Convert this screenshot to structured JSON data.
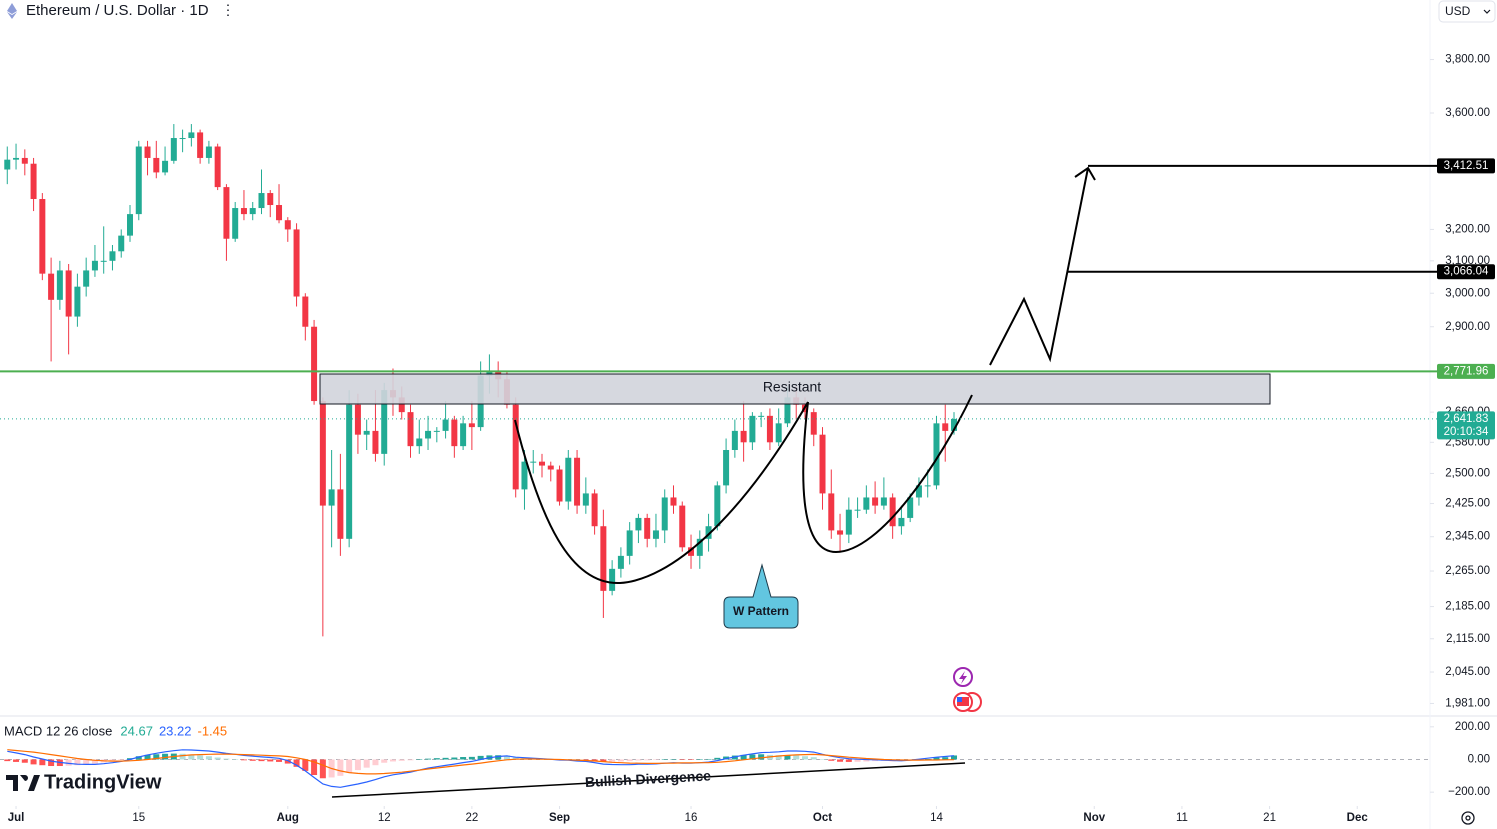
{
  "header": {
    "title": "Ethereum / U.S. Dollar · 1D",
    "currency": "USD"
  },
  "logo": "TradingView",
  "chart_data": [
    {
      "type": "candlestick",
      "log": true,
      "up_color": "#22ab94",
      "down_color": "#f23645",
      "x": [
        -1,
        0,
        1,
        2,
        3,
        4,
        5,
        6,
        7,
        8,
        9,
        10,
        11,
        12,
        13,
        14,
        15,
        16,
        17,
        18,
        19,
        20,
        21,
        22,
        23,
        24,
        25,
        26,
        27,
        28,
        29,
        30,
        31,
        32,
        33,
        34,
        35,
        36,
        37,
        38,
        39,
        40,
        41,
        42,
        43,
        44,
        45,
        46,
        47,
        48,
        49,
        50,
        51,
        52,
        53,
        54,
        55,
        56,
        57,
        58,
        59,
        60,
        61,
        62,
        63,
        64,
        65,
        66,
        67,
        68,
        69,
        70,
        71,
        72,
        73,
        74,
        75,
        76,
        77,
        78,
        79,
        80,
        81,
        82,
        83,
        84,
        85,
        86,
        87,
        88,
        89,
        90,
        91,
        92,
        93,
        94,
        95,
        96,
        97,
        98,
        99,
        100,
        101,
        102,
        103,
        104,
        105,
        106,
        107
      ],
      "opens": [
        3400,
        3434,
        3440,
        3420,
        3300,
        3060,
        2980,
        3070,
        2930,
        3020,
        3070,
        3100,
        3100,
        3130,
        3180,
        3250,
        3480,
        3440,
        3390,
        3430,
        3510,
        3510,
        3530,
        3440,
        3480,
        3340,
        3170,
        3270,
        3250,
        3270,
        3320,
        3280,
        3230,
        3200,
        2990,
        2900,
        2690,
        2420,
        2460,
        2340,
        2680,
        2600,
        2610,
        2550,
        2720,
        2700,
        2660,
        2570,
        2590,
        2610,
        2610,
        2640,
        2570,
        2630,
        2620,
        2760,
        2770,
        2750,
        2680,
        2460,
        2530,
        2530,
        2520,
        2510,
        2430,
        2540,
        2420,
        2450,
        2370,
        2220,
        2270,
        2300,
        2360,
        2390,
        2340,
        2360,
        2440,
        2420,
        2320,
        2300,
        2340,
        2370,
        2470,
        2560,
        2610,
        2580,
        2650,
        2650,
        2580,
        2630,
        2700,
        2680,
        2660,
        2600,
        2450,
        2360,
        2350,
        2410,
        2410,
        2440,
        2420,
        2440,
        2370,
        2390,
        2440,
        2470,
        2470,
        2630,
        2610
      ],
      "highs": [
        3480,
        3490,
        3470,
        3440,
        3320,
        3110,
        3100,
        3090,
        3060,
        3110,
        3150,
        3210,
        3150,
        3200,
        3280,
        3500,
        3500,
        3500,
        3480,
        3560,
        3540,
        3560,
        3540,
        3500,
        3490,
        3350,
        3290,
        3330,
        3290,
        3400,
        3330,
        3350,
        3240,
        3220,
        3000,
        2920,
        2700,
        2560,
        2550,
        2720,
        2710,
        2640,
        2720,
        2740,
        2780,
        2730,
        2680,
        2640,
        2650,
        2620,
        2690,
        2650,
        2650,
        2690,
        2800,
        2820,
        2800,
        2770,
        2700,
        2560,
        2560,
        2550,
        2530,
        2520,
        2560,
        2560,
        2490,
        2460,
        2410,
        2290,
        2320,
        2380,
        2400,
        2400,
        2400,
        2460,
        2470,
        2430,
        2350,
        2360,
        2400,
        2480,
        2590,
        2640,
        2690,
        2660,
        2660,
        2670,
        2670,
        2730,
        2730,
        2700,
        2670,
        2620,
        2510,
        2400,
        2440,
        2440,
        2470,
        2480,
        2490,
        2450,
        2420,
        2450,
        2490,
        2510,
        2650,
        2680,
        2660
      ],
      "lows": [
        3350,
        3400,
        3380,
        3260,
        3040,
        2800,
        2950,
        2820,
        2900,
        2990,
        3050,
        3060,
        3070,
        3110,
        3160,
        3230,
        3380,
        3370,
        3380,
        3420,
        3460,
        3480,
        3420,
        3420,
        3330,
        3100,
        3160,
        3230,
        3230,
        3250,
        3240,
        3220,
        3160,
        2960,
        2860,
        2680,
        2120,
        2320,
        2300,
        2320,
        2550,
        2560,
        2530,
        2520,
        2650,
        2640,
        2540,
        2550,
        2560,
        2580,
        2590,
        2540,
        2560,
        2560,
        2610,
        2710,
        2700,
        2670,
        2440,
        2410,
        2500,
        2490,
        2480,
        2420,
        2410,
        2400,
        2400,
        2350,
        2160,
        2210,
        2250,
        2280,
        2330,
        2320,
        2320,
        2330,
        2400,
        2310,
        2270,
        2270,
        2310,
        2360,
        2450,
        2540,
        2530,
        2560,
        2620,
        2560,
        2570,
        2620,
        2640,
        2640,
        2570,
        2410,
        2340,
        2310,
        2330,
        2390,
        2400,
        2400,
        2410,
        2340,
        2350,
        2380,
        2420,
        2440,
        2460,
        2530,
        2600
      ],
      "closes": [
        3434,
        3440,
        3420,
        3300,
        3060,
        2980,
        3070,
        2930,
        3020,
        3070,
        3100,
        3100,
        3130,
        3180,
        3250,
        3480,
        3440,
        3390,
        3430,
        3510,
        3510,
        3530,
        3440,
        3480,
        3340,
        3170,
        3270,
        3250,
        3270,
        3320,
        3280,
        3230,
        3200,
        2990,
        2900,
        2690,
        2420,
        2460,
        2340,
        2680,
        2600,
        2610,
        2550,
        2720,
        2700,
        2660,
        2570,
        2590,
        2610,
        2610,
        2640,
        2570,
        2630,
        2620,
        2760,
        2770,
        2750,
        2680,
        2460,
        2530,
        2530,
        2520,
        2510,
        2430,
        2540,
        2420,
        2450,
        2370,
        2220,
        2270,
        2300,
        2360,
        2390,
        2340,
        2360,
        2440,
        2420,
        2320,
        2300,
        2340,
        2370,
        2470,
        2560,
        2610,
        2580,
        2650,
        2650,
        2580,
        2630,
        2700,
        2680,
        2660,
        2600,
        2450,
        2360,
        2350,
        2410,
        2410,
        2440,
        2420,
        2440,
        2370,
        2390,
        2440,
        2470,
        2470,
        2630,
        2610,
        2641.83
      ],
      "xlim": [
        -1.83,
        161.3
      ],
      "ylim": [
        1958,
        4036
      ],
      "xticks": [
        {
          "value": 0,
          "label": "Jul"
        },
        {
          "value": 14,
          "label": "15"
        },
        {
          "value": 31,
          "label": "Aug"
        },
        {
          "value": 42,
          "label": "12"
        },
        {
          "value": 52,
          "label": "22"
        },
        {
          "value": 62,
          "label": "Sep"
        },
        {
          "value": 77,
          "label": "16"
        },
        {
          "value": 92,
          "label": "Oct"
        },
        {
          "value": 105,
          "label": "14"
        },
        {
          "value": 123,
          "label": "Nov"
        },
        {
          "value": 133,
          "label": "11"
        },
        {
          "value": 143,
          "label": "21"
        },
        {
          "value": 153,
          "label": "Dec"
        }
      ],
      "yticks": [
        {
          "value": 3800,
          "label": "3,800.00"
        },
        {
          "value": 3600,
          "label": "3,600.00"
        },
        {
          "value": 3200,
          "label": "3,200.00"
        },
        {
          "value": 3100,
          "label": "3,100.00"
        },
        {
          "value": 3000,
          "label": "3,000.00"
        },
        {
          "value": 2900,
          "label": "2,900.00"
        },
        {
          "value": 2660,
          "label": "2,660.00"
        },
        {
          "value": 2580,
          "label": "2,580.00"
        },
        {
          "value": 2500,
          "label": "2,500.00"
        },
        {
          "value": 2425,
          "label": "2,425.00"
        },
        {
          "value": 2345,
          "label": "2,345.00"
        },
        {
          "value": 2265,
          "label": "2,265.00"
        },
        {
          "value": 2185,
          "label": "2,185.00"
        },
        {
          "value": 2115,
          "label": "2,115.00"
        },
        {
          "value": 2045,
          "label": "2,045.00"
        },
        {
          "value": 1981,
          "label": "1,981.00"
        }
      ],
      "levels": [
        {
          "value": 2771.96,
          "label": "2,771.96",
          "color": "#4caf50"
        },
        {
          "value": 2641.83,
          "label": "2,641.83",
          "color": "#22ab94",
          "countdown": "20:10:34"
        },
        {
          "value": 3412.51,
          "label": "3,412.51",
          "color": "#000000"
        },
        {
          "value": 3066.04,
          "label": "3,066.04",
          "color": "#000000"
        }
      ],
      "annotations": {
        "resistance": "Resistant",
        "pattern": "W Pattern"
      }
    },
    {
      "type": "macd",
      "title": "MACD 12 26 close",
      "legend_values": [
        24.67,
        23.22,
        -1.45
      ],
      "legend_colors": [
        "#22ab94",
        "#2962ff",
        "#ff6d00"
      ],
      "histogram": [
        -10,
        -15,
        -20,
        -30,
        -35,
        -40,
        -40,
        -38,
        -35,
        -30,
        -25,
        -18,
        -10,
        -2,
        8,
        20,
        28,
        32,
        35,
        36,
        35,
        30,
        25,
        20,
        12,
        5,
        0,
        -5,
        -8,
        -10,
        -12,
        -15,
        -25,
        -45,
        -70,
        -95,
        -115,
        -110,
        -100,
        -80,
        -65,
        -50,
        -35,
        -20,
        -12,
        -8,
        -5,
        0,
        5,
        8,
        10,
        12,
        15,
        16,
        22,
        25,
        26,
        24,
        12,
        8,
        5,
        3,
        0,
        -3,
        -2,
        -5,
        -6,
        -10,
        -15,
        -14,
        -12,
        -10,
        -6,
        -5,
        -3,
        0,
        2,
        -1,
        -2,
        0,
        3,
        10,
        18,
        24,
        28,
        30,
        32,
        28,
        26,
        27,
        24,
        20,
        14,
        2,
        -8,
        -14,
        -15,
        -14,
        -12,
        -10,
        -9,
        -10,
        -9,
        -5,
        0,
        3,
        12,
        14,
        24.67
      ],
      "macd": [
        50,
        40,
        30,
        15,
        3,
        -10,
        -18,
        -24,
        -29,
        -30,
        -30,
        -26,
        -20,
        -12,
        0,
        15,
        28,
        38,
        47,
        54,
        59,
        58,
        55,
        52,
        45,
        38,
        32,
        25,
        20,
        16,
        12,
        7,
        -7,
        -35,
        -70,
        -110,
        -150,
        -165,
        -170,
        -160,
        -150,
        -138,
        -123,
        -106,
        -94,
        -86,
        -77,
        -65,
        -53,
        -44,
        -36,
        -28,
        -19,
        -12,
        0,
        10,
        18,
        22,
        14,
        11,
        8,
        5,
        1,
        -3,
        -4,
        -9,
        -12,
        -19,
        -28,
        -31,
        -32,
        -32,
        -29,
        -29,
        -27,
        -23,
        -20,
        -22,
        -23,
        -20,
        -16,
        -7,
        5,
        16,
        26,
        34,
        42,
        44,
        47,
        52,
        52,
        50,
        45,
        32,
        20,
        11,
        5,
        2,
        0,
        -2,
        -4,
        -6,
        -8,
        -4,
        2,
        8,
        14,
        18,
        23.22
      ],
      "signal": [
        60,
        55,
        50,
        45,
        38,
        30,
        22,
        14,
        6,
        0,
        -5,
        -8,
        -10,
        -10,
        -8,
        -5,
        0,
        6,
        12,
        18,
        24,
        28,
        30,
        32,
        33,
        33,
        32,
        30,
        28,
        26,
        24,
        22,
        18,
        10,
        0,
        -15,
        -35,
        -55,
        -70,
        -80,
        -85,
        -88,
        -88,
        -86,
        -82,
        -78,
        -72,
        -65,
        -58,
        -52,
        -46,
        -40,
        -34,
        -28,
        -22,
        -15,
        -8,
        -2,
        2,
        3,
        3,
        2,
        1,
        0,
        -2,
        -4,
        -6,
        -9,
        -13,
        -17,
        -20,
        -22,
        -23,
        -24,
        -24,
        -23,
        -22,
        -21,
        -21,
        -20,
        -19,
        -17,
        -13,
        -8,
        -2,
        4,
        10,
        16,
        21,
        25,
        28,
        30,
        31,
        28,
        24,
        19,
        14,
        10,
        6,
        3,
        0,
        -2,
        -3,
        -4,
        -4,
        -3,
        -3,
        -2,
        -1.45
      ],
      "hist_colors": [
        "#26a69a",
        "#b2dfdb",
        "#ff5252",
        "#ffcdd2"
      ],
      "ylim": [
        -248,
        260
      ],
      "yticks": [
        {
          "value": 200,
          "label": "200.00"
        },
        {
          "value": 0,
          "label": "0.00"
        },
        {
          "value": -200,
          "label": "−200.00"
        }
      ],
      "annotations": {
        "divergence": "Bullish Divergence"
      }
    }
  ]
}
